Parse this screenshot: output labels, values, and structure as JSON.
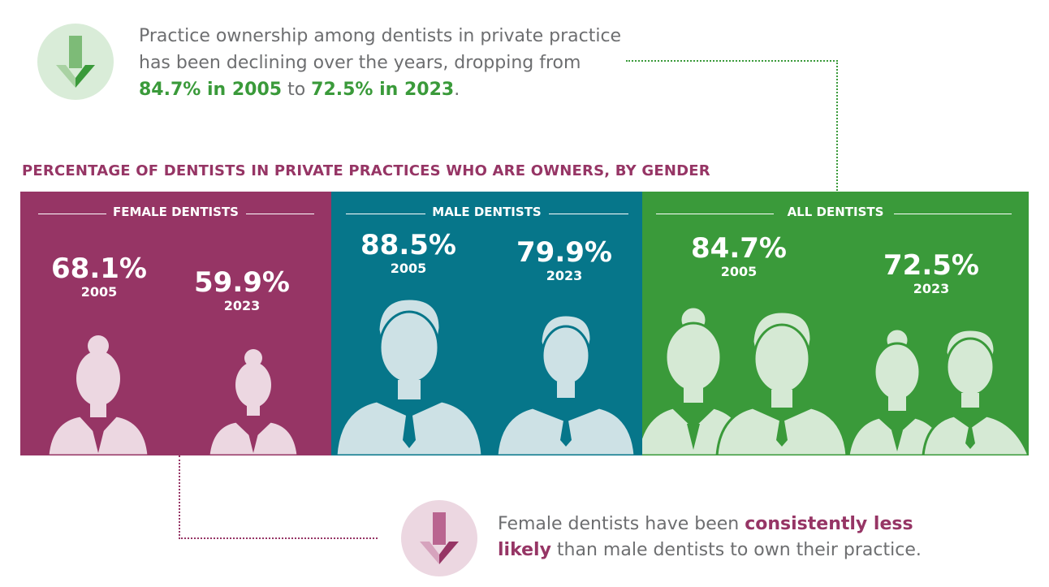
{
  "intro": {
    "text_a": "Practice ownership among dentists in private practice has been declining over the years, dropping from ",
    "hl_1": "84.7% in 2005",
    "text_b": " to ",
    "hl_2": "72.5% in 2023",
    "text_c": ".",
    "icon": "down-arrow-icon"
  },
  "outro": {
    "text_a": "Female dentists have been ",
    "hl": "consistently less likely",
    "text_b": " than male dentists to own their practice.",
    "icon": "down-arrow-icon"
  },
  "colors": {
    "female": "#963565",
    "male": "#06768a",
    "all": "#3a9a3a",
    "female_fig": "#ecd7e1",
    "male_fig": "#cde1e5",
    "all_fig": "#d5e9d4"
  },
  "chart_data": {
    "type": "bar",
    "title": "PERCENTAGE OF DENTISTS IN PRIVATE PRACTICES WHO ARE OWNERS, BY GENDER",
    "categories": [
      "FEMALE DENTISTS",
      "MALE DENTISTS",
      "ALL DENTISTS"
    ],
    "series": [
      {
        "name": "2005",
        "values": [
          68.1,
          88.5,
          84.7
        ]
      },
      {
        "name": "2023",
        "values": [
          59.9,
          79.9,
          72.5
        ]
      }
    ],
    "labels": [
      {
        "value": "68.1%",
        "year": "2005"
      },
      {
        "value": "59.9%",
        "year": "2023"
      },
      {
        "value": "88.5%",
        "year": "2005"
      },
      {
        "value": "79.9%",
        "year": "2023"
      },
      {
        "value": "84.7%",
        "year": "2005"
      },
      {
        "value": "72.5%",
        "year": "2023"
      }
    ]
  }
}
